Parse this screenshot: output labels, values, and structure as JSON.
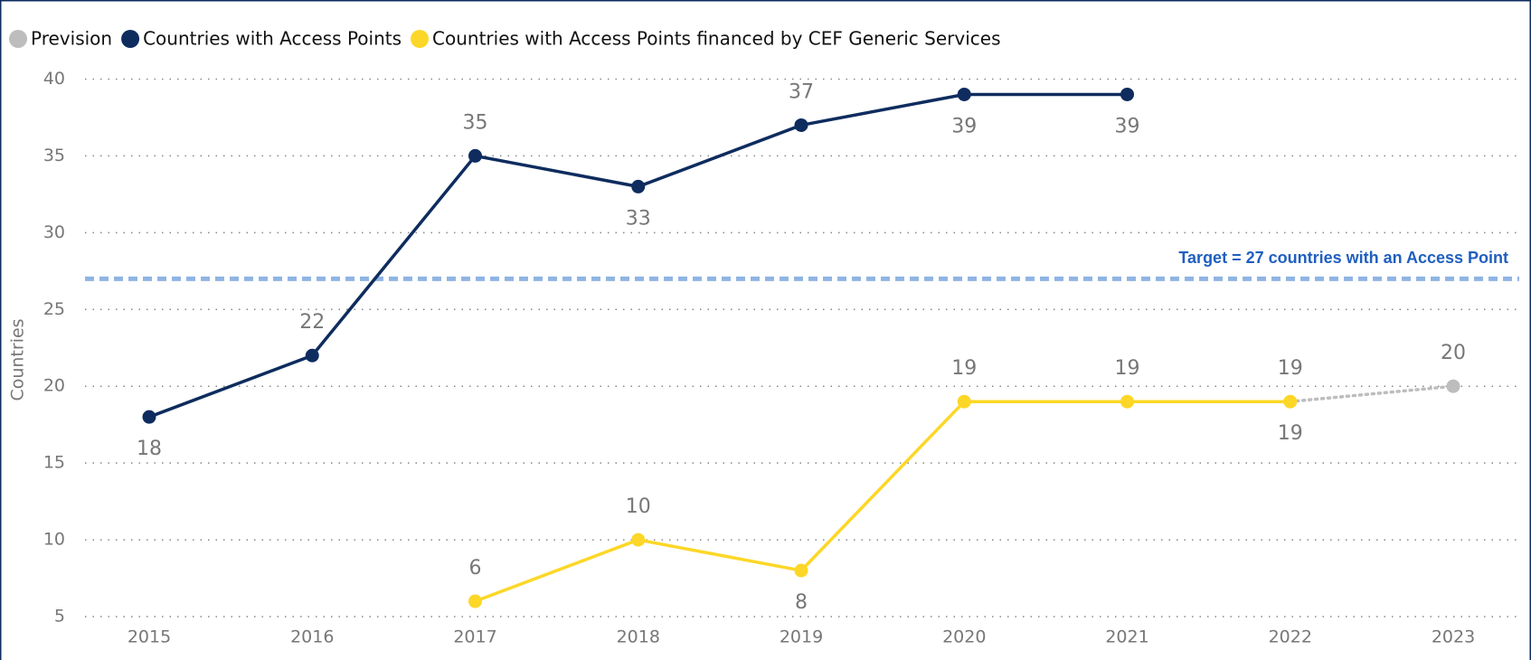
{
  "chart_data": {
    "type": "line",
    "y_label": "Countries",
    "categories": [
      "2015",
      "2016",
      "2017",
      "2018",
      "2019",
      "2020",
      "2021",
      "2022",
      "2023"
    ],
    "series": [
      {
        "name": "Prevision",
        "color": "#bdbdbd",
        "values": [
          null,
          null,
          null,
          null,
          null,
          null,
          null,
          19,
          20
        ]
      },
      {
        "name": "Countries with Access Points",
        "color": "#0e2c5e",
        "values": [
          18,
          22,
          35,
          33,
          37,
          39,
          39,
          null,
          null
        ]
      },
      {
        "name": "Countries with Access Points financed by CEF Generic Services",
        "color": "#fcd727",
        "values": [
          null,
          null,
          6,
          10,
          8,
          19,
          19,
          19,
          null
        ]
      }
    ],
    "ylim": [
      5,
      40
    ],
    "yticks": [
      5,
      10,
      15,
      20,
      25,
      30,
      35,
      40
    ],
    "grid": true,
    "legend": "top",
    "target": {
      "value": 27,
      "label": "Target = 27 countries with an Access Point",
      "color": "#8fb4e3"
    }
  }
}
